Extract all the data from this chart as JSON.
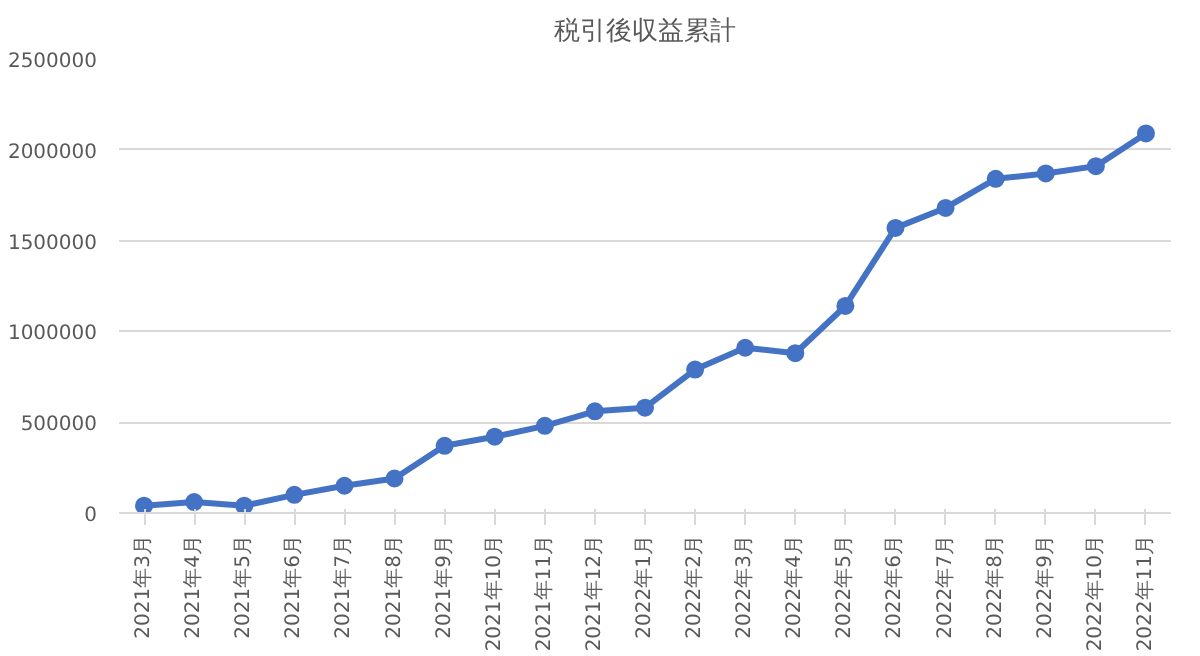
{
  "chart_data": {
    "type": "line",
    "title": "税引後収益累計",
    "categories": [
      "2021年3月",
      "2021年4月",
      "2021年5月",
      "2021年6月",
      "2021年7月",
      "2021年8月",
      "2021年9月",
      "2021年10月",
      "2021年11月",
      "2021年12月",
      "2022年1月",
      "2022年2月",
      "2022年3月",
      "2022年4月",
      "2022年5月",
      "2022年6月",
      "2022年7月",
      "2022年8月",
      "2022年9月",
      "2022年10月",
      "2022年11月"
    ],
    "series": [
      {
        "color": "#4472c4",
        "values": [
          40000,
          60000,
          40000,
          100000,
          150000,
          190000,
          370000,
          420000,
          480000,
          560000,
          580000,
          790000,
          910000,
          880000,
          1140000,
          1570000,
          1680000,
          1840000,
          1870000,
          1910000,
          2090000
        ]
      }
    ],
    "ylim": [
      0,
      2500000
    ],
    "yticks": [
      0,
      500000,
      1000000,
      1500000,
      2000000,
      2500000
    ],
    "grid": "y",
    "marker": "circle",
    "line_style": "solid"
  }
}
